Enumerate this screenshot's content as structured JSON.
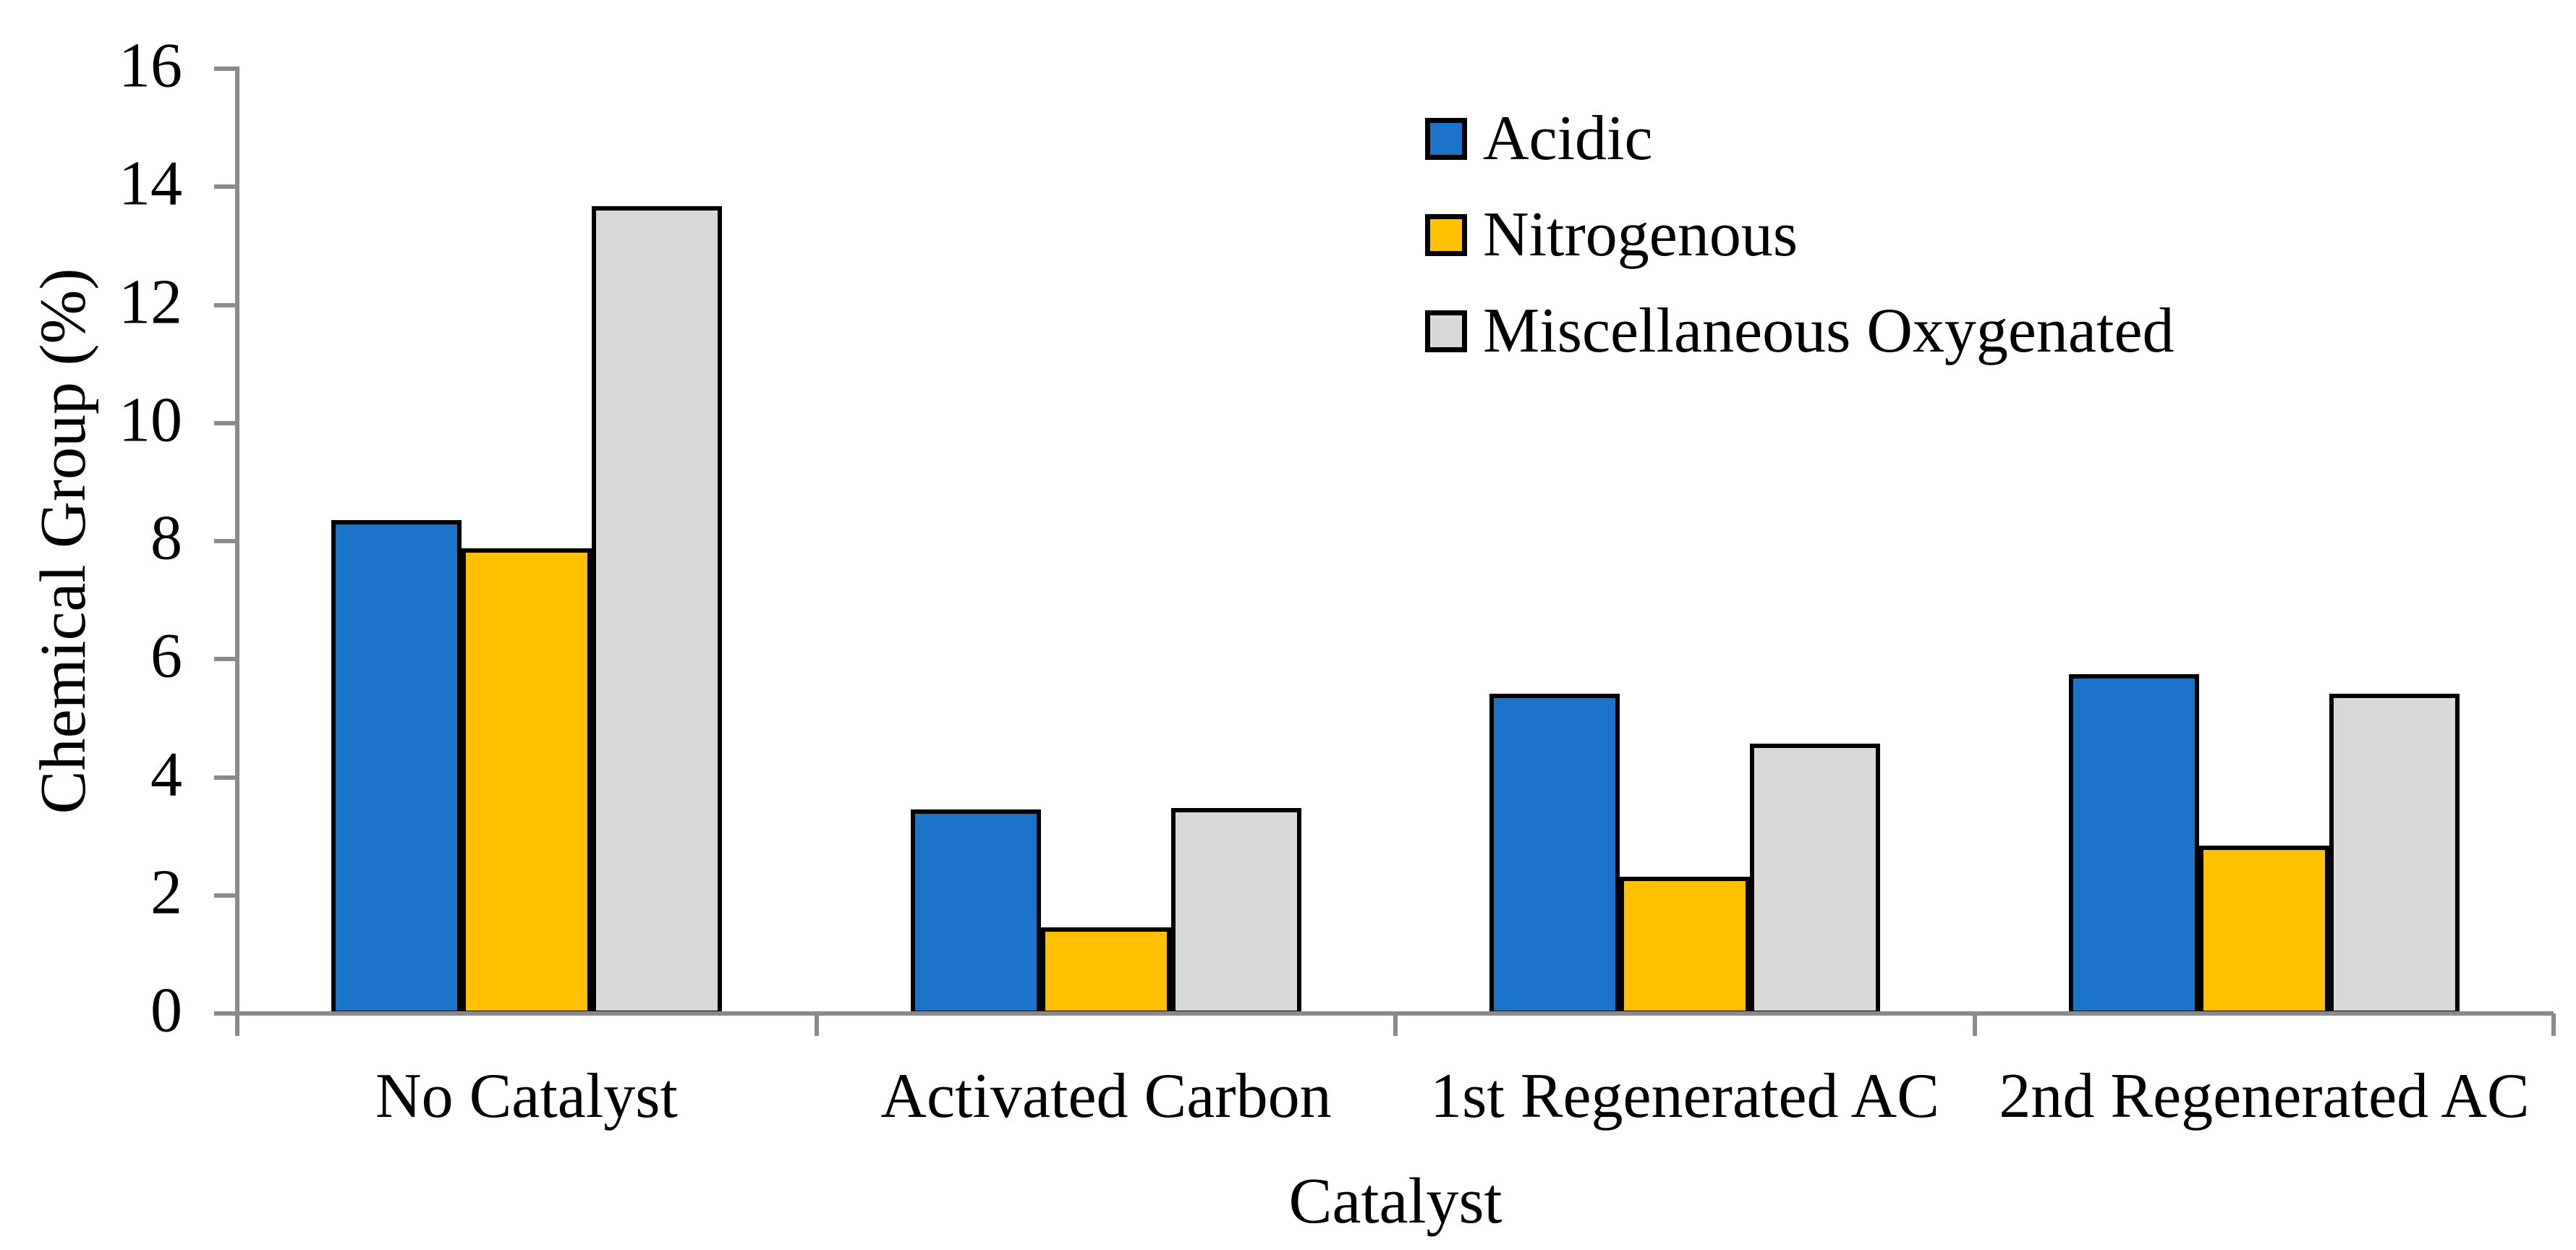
{
  "chart_data": {
    "type": "bar",
    "title": "",
    "xlabel": "Catalyst",
    "ylabel": "Chemical Group (%)",
    "categories": [
      "No Catalyst",
      "Activated Carbon",
      "1st Regenerated AC",
      "2nd Regenerated AC"
    ],
    "series": [
      {
        "name": "Acidic",
        "color": "#1B74C8",
        "values": [
          8.38,
          3.48,
          5.44,
          5.77
        ]
      },
      {
        "name": "Nitrogenous",
        "color": "#FFC000",
        "values": [
          7.9,
          1.48,
          2.34,
          2.87
        ]
      },
      {
        "name": "Miscellaneous Oxygenated",
        "color": "#D9D9D9",
        "values": [
          13.7,
          3.5,
          4.6,
          5.44
        ]
      }
    ],
    "ylim": [
      0,
      16
    ],
    "ytick_step": 2,
    "ytick_labels": [
      "0",
      "2",
      "4",
      "6",
      "8",
      "10",
      "12",
      "14",
      "16"
    ],
    "grid": false,
    "legend_position": "top-right",
    "axis_color": "#8A8A8A",
    "bar_border_color": "#000000",
    "text_color": "#000000",
    "background_color": "#FFFFFF"
  }
}
